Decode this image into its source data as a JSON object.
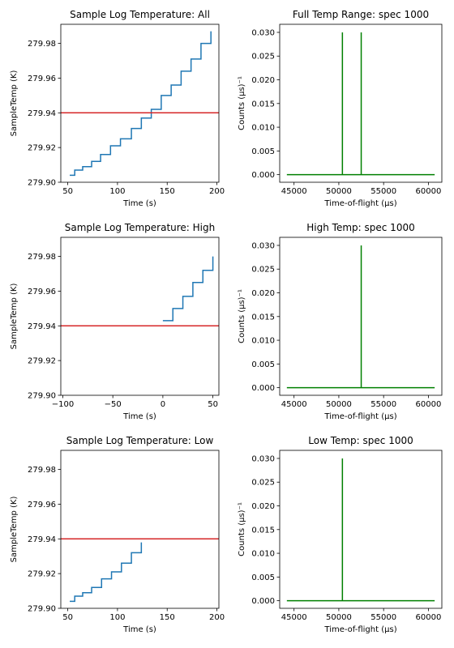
{
  "chart_data": [
    {
      "type": "line",
      "title": "Sample Log Temperature: All",
      "xlabel": "Time (s)",
      "ylabel": "SampleTemp (K)",
      "xlim": [
        43,
        202
      ],
      "ylim": [
        279.9,
        279.991
      ],
      "xticks": [
        50,
        100,
        150,
        200
      ],
      "xtick_labels": [
        "50",
        "100",
        "150",
        "200"
      ],
      "yticks": [
        279.9,
        279.92,
        279.94,
        279.96,
        279.98
      ],
      "ytick_labels": [
        "279.90",
        "279.92",
        "279.94",
        "279.96",
        "279.98"
      ],
      "series": [
        {
          "color": "#1f77b4",
          "step": true,
          "x": [
            52,
            57,
            65,
            74,
            83,
            93,
            103,
            114,
            124,
            134,
            144,
            154,
            164,
            174,
            184,
            194
          ],
          "y": [
            279.904,
            279.907,
            279.909,
            279.912,
            279.916,
            279.921,
            279.925,
            279.931,
            279.937,
            279.942,
            279.95,
            279.956,
            279.964,
            279.971,
            279.98,
            279.987
          ]
        },
        {
          "color": "#d62728",
          "hline": 279.94
        }
      ]
    },
    {
      "type": "line",
      "title": "Full Temp Range: spec 1000",
      "xlabel": "Time-of-flight (μs)",
      "ylabel": "Counts (μs)⁻¹",
      "xlim": [
        43400,
        61500
      ],
      "ylim": [
        -0.0016,
        0.0317
      ],
      "xticks": [
        45000,
        50000,
        55000,
        60000
      ],
      "xtick_labels": [
        "45000",
        "50000",
        "55000",
        "60000"
      ],
      "yticks": [
        0,
        0.005,
        0.01,
        0.015,
        0.02,
        0.025,
        0.03
      ],
      "ytick_labels": [
        "0.000",
        "0.005",
        "0.010",
        "0.015",
        "0.020",
        "0.025",
        "0.030"
      ],
      "series": [
        {
          "color": "#008000",
          "x": [
            44200,
            50400,
            50400,
            50400,
            52500,
            52500,
            52500,
            60700
          ],
          "y": [
            0,
            0,
            0.03,
            0,
            0,
            0.03,
            0,
            0
          ]
        }
      ]
    },
    {
      "type": "line",
      "title": "Sample Log Temperature: High",
      "xlabel": "Time (s)",
      "ylabel": "SampleTemp (K)",
      "xlim": [
        -102,
        56
      ],
      "ylim": [
        279.9,
        279.991
      ],
      "xticks": [
        -100,
        -50,
        0,
        50
      ],
      "xtick_labels": [
        "−100",
        "−50",
        "0",
        "50"
      ],
      "yticks": [
        279.9,
        279.92,
        279.94,
        279.96,
        279.98
      ],
      "ytick_labels": [
        "279.90",
        "279.92",
        "279.94",
        "279.96",
        "279.98"
      ],
      "series": [
        {
          "color": "#1f77b4",
          "step": true,
          "x": [
            0,
            10,
            20,
            30,
            40,
            50
          ],
          "y": [
            279.943,
            279.95,
            279.957,
            279.965,
            279.972,
            279.98
          ]
        },
        {
          "color": "#d62728",
          "hline": 279.94
        }
      ]
    },
    {
      "type": "line",
      "title": "High Temp: spec 1000",
      "xlabel": "Time-of-flight (μs)",
      "ylabel": "Counts (μs)⁻¹",
      "xlim": [
        43400,
        61500
      ],
      "ylim": [
        -0.0016,
        0.0317
      ],
      "xticks": [
        45000,
        50000,
        55000,
        60000
      ],
      "xtick_labels": [
        "45000",
        "50000",
        "55000",
        "60000"
      ],
      "yticks": [
        0,
        0.005,
        0.01,
        0.015,
        0.02,
        0.025,
        0.03
      ],
      "ytick_labels": [
        "0.000",
        "0.005",
        "0.010",
        "0.015",
        "0.020",
        "0.025",
        "0.030"
      ],
      "series": [
        {
          "color": "#008000",
          "x": [
            44200,
            52500,
            52500,
            52500,
            60700
          ],
          "y": [
            0,
            0,
            0.03,
            0,
            0
          ]
        }
      ]
    },
    {
      "type": "line",
      "title": "Sample Log Temperature: Low",
      "xlabel": "Time (s)",
      "ylabel": "SampleTemp (K)",
      "xlim": [
        43,
        202
      ],
      "ylim": [
        279.9,
        279.991
      ],
      "xticks": [
        50,
        100,
        150,
        200
      ],
      "xtick_labels": [
        "50",
        "100",
        "150",
        "200"
      ],
      "yticks": [
        279.9,
        279.92,
        279.94,
        279.96,
        279.98
      ],
      "ytick_labels": [
        "279.90",
        "279.92",
        "279.94",
        "279.96",
        "279.98"
      ],
      "series": [
        {
          "color": "#1f77b4",
          "step": true,
          "x": [
            52,
            57,
            65,
            74,
            84,
            94,
            104,
            114,
            124
          ],
          "y": [
            279.904,
            279.907,
            279.909,
            279.912,
            279.917,
            279.921,
            279.926,
            279.932,
            279.938
          ]
        },
        {
          "color": "#d62728",
          "hline": 279.94
        }
      ]
    },
    {
      "type": "line",
      "title": "Low Temp: spec 1000",
      "xlabel": "Time-of-flight (μs)",
      "ylabel": "Counts (μs)⁻¹",
      "xlim": [
        43400,
        61500
      ],
      "ylim": [
        -0.0016,
        0.0317
      ],
      "xticks": [
        45000,
        50000,
        55000,
        60000
      ],
      "xtick_labels": [
        "45000",
        "50000",
        "55000",
        "60000"
      ],
      "yticks": [
        0,
        0.005,
        0.01,
        0.015,
        0.02,
        0.025,
        0.03
      ],
      "ytick_labels": [
        "0.000",
        "0.005",
        "0.010",
        "0.015",
        "0.020",
        "0.025",
        "0.030"
      ],
      "series": [
        {
          "color": "#008000",
          "x": [
            44200,
            50400,
            50400,
            50400,
            60700
          ],
          "y": [
            0,
            0,
            0.03,
            0,
            0
          ]
        }
      ]
    }
  ]
}
